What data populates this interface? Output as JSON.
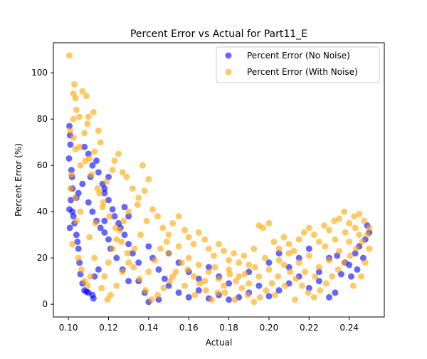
{
  "chart_data": {
    "type": "scatter",
    "title": "Percent Error vs Actual for Part11_E",
    "xlabel": "Actual",
    "ylabel": "Percent Error (%)",
    "xlim": [
      0.0925,
      0.2575
    ],
    "ylim": [
      -5.5,
      113
    ],
    "xticks": [
      0.1,
      0.12,
      0.14,
      0.16,
      0.18,
      0.2,
      0.22,
      0.24
    ],
    "xtick_labels": [
      "0.10",
      "0.12",
      "0.14",
      "0.16",
      "0.18",
      "0.20",
      "0.22",
      "0.24"
    ],
    "yticks": [
      0,
      20,
      40,
      60,
      80,
      100
    ],
    "ytick_labels": [
      "0",
      "20",
      "40",
      "60",
      "80",
      "100"
    ],
    "grid": false,
    "legend_position": "top-right",
    "series": [
      {
        "name": "Percent Error (No Noise)",
        "color": "#0000ff",
        "alpha": 0.6,
        "points": [
          [
            0.1005,
            77
          ],
          [
            0.1008,
            73
          ],
          [
            0.101,
            69
          ],
          [
            0.1003,
            63
          ],
          [
            0.1015,
            58
          ],
          [
            0.1018,
            55
          ],
          [
            0.102,
            50
          ],
          [
            0.1012,
            45
          ],
          [
            0.1005,
            41
          ],
          [
            0.1025,
            38
          ],
          [
            0.103,
            35
          ],
          [
            0.1007,
            33
          ],
          [
            0.104,
            30
          ],
          [
            0.1045,
            27
          ],
          [
            0.105,
            24
          ],
          [
            0.1055,
            18
          ],
          [
            0.106,
            13
          ],
          [
            0.107,
            9
          ],
          [
            0.108,
            6
          ],
          [
            0.109,
            5.5
          ],
          [
            0.11,
            5
          ],
          [
            0.112,
            4
          ],
          [
            0.1125,
            2.5
          ],
          [
            0.113,
            12
          ],
          [
            0.115,
            15
          ],
          [
            0.108,
            68
          ],
          [
            0.11,
            65
          ],
          [
            0.112,
            60
          ],
          [
            0.115,
            57
          ],
          [
            0.117,
            52
          ],
          [
            0.118,
            48
          ],
          [
            0.12,
            45
          ],
          [
            0.122,
            41
          ],
          [
            0.105,
            48
          ],
          [
            0.11,
            44
          ],
          [
            0.112,
            40
          ],
          [
            0.114,
            36
          ],
          [
            0.116,
            33
          ],
          [
            0.118,
            31
          ],
          [
            0.12,
            28
          ],
          [
            0.125,
            35
          ],
          [
            0.128,
            30
          ],
          [
            0.13,
            26
          ],
          [
            0.132,
            22
          ],
          [
            0.135,
            18
          ],
          [
            0.14,
            25
          ],
          [
            0.142,
            20
          ],
          [
            0.145,
            15
          ],
          [
            0.148,
            11
          ],
          [
            0.15,
            8
          ],
          [
            0.155,
            5
          ],
          [
            0.16,
            3
          ],
          [
            0.165,
            6
          ],
          [
            0.17,
            2.5
          ],
          [
            0.175,
            4
          ],
          [
            0.18,
            2
          ],
          [
            0.185,
            3
          ],
          [
            0.19,
            5
          ],
          [
            0.195,
            8
          ],
          [
            0.2,
            3.5
          ],
          [
            0.205,
            6
          ],
          [
            0.21,
            9
          ],
          [
            0.215,
            12
          ],
          [
            0.22,
            7
          ],
          [
            0.225,
            10
          ],
          [
            0.23,
            3
          ],
          [
            0.233,
            5
          ],
          [
            0.236,
            13
          ],
          [
            0.24,
            17
          ],
          [
            0.243,
            22
          ],
          [
            0.245,
            25
          ],
          [
            0.248,
            28
          ],
          [
            0.25,
            31
          ],
          [
            0.249,
            34
          ],
          [
            0.247,
            20
          ],
          [
            0.244,
            15
          ],
          [
            0.241,
            12
          ],
          [
            0.238,
            18
          ],
          [
            0.234,
            21
          ],
          [
            0.13,
            38
          ],
          [
            0.128,
            42
          ],
          [
            0.135,
            10
          ],
          [
            0.138,
            5
          ],
          [
            0.14,
            1
          ],
          [
            0.145,
            2
          ],
          [
            0.15,
            22
          ],
          [
            0.155,
            18
          ],
          [
            0.16,
            14
          ],
          [
            0.165,
            11
          ],
          [
            0.17,
            16
          ],
          [
            0.175,
            12
          ],
          [
            0.18,
            9
          ],
          [
            0.19,
            14
          ],
          [
            0.2,
            18
          ],
          [
            0.205,
            22
          ],
          [
            0.21,
            16
          ],
          [
            0.215,
            20
          ],
          [
            0.22,
            24
          ],
          [
            0.225,
            14
          ],
          [
            0.23,
            20
          ],
          [
            0.12,
            55
          ],
          [
            0.118,
            50
          ],
          [
            0.114,
            62
          ],
          [
            0.111,
            55
          ],
          [
            0.107,
            52
          ],
          [
            0.104,
            46
          ],
          [
            0.102,
            40
          ],
          [
            0.123,
            38
          ],
          [
            0.126,
            33
          ],
          [
            0.118,
            36
          ],
          [
            0.121,
            24
          ],
          [
            0.124,
            20
          ],
          [
            0.127,
            15
          ],
          [
            0.13,
            10
          ]
        ]
      },
      {
        "name": "Percent Error (With Noise)",
        "color": "#ffa500",
        "alpha": 0.6,
        "points": [
          [
            0.1005,
            107.5
          ],
          [
            0.103,
            95
          ],
          [
            0.1025,
            91
          ],
          [
            0.1035,
            89
          ],
          [
            0.104,
            84
          ],
          [
            0.1025,
            80
          ],
          [
            0.101,
            75
          ],
          [
            0.1055,
            81
          ],
          [
            0.107,
            92
          ],
          [
            0.109,
            90
          ],
          [
            0.11,
            81
          ],
          [
            0.1095,
            78
          ],
          [
            0.108,
            74
          ],
          [
            0.1125,
            83
          ],
          [
            0.115,
            75
          ],
          [
            0.116,
            70
          ],
          [
            0.113,
            66
          ],
          [
            0.1105,
            63
          ],
          [
            0.106,
            60
          ],
          [
            0.1035,
            67
          ],
          [
            0.1015,
            56
          ],
          [
            0.101,
            50
          ],
          [
            0.1035,
            46
          ],
          [
            0.106,
            40
          ],
          [
            0.104,
            36
          ],
          [
            0.102,
            26
          ],
          [
            0.105,
            20
          ],
          [
            0.1065,
            15
          ],
          [
            0.108,
            10
          ],
          [
            0.1095,
            8
          ],
          [
            0.111,
            12
          ],
          [
            0.113,
            20
          ],
          [
            0.1105,
            29
          ],
          [
            0.1135,
            35
          ],
          [
            0.117,
            42
          ],
          [
            0.1155,
            48
          ],
          [
            0.119,
            53
          ],
          [
            0.122,
            58
          ],
          [
            0.123,
            62
          ],
          [
            0.125,
            65
          ],
          [
            0.127,
            57
          ],
          [
            0.129,
            55
          ],
          [
            0.132,
            50
          ],
          [
            0.135,
            46
          ],
          [
            0.138,
            49
          ],
          [
            0.14,
            54
          ],
          [
            0.137,
            60
          ],
          [
            0.1345,
            43
          ],
          [
            0.13,
            40
          ],
          [
            0.1275,
            36
          ],
          [
            0.1255,
            32
          ],
          [
            0.124,
            28
          ],
          [
            0.122,
            24
          ],
          [
            0.12,
            18
          ],
          [
            0.118,
            12
          ],
          [
            0.1165,
            7
          ],
          [
            0.1195,
            2
          ],
          [
            0.121,
            4
          ],
          [
            0.124,
            8
          ],
          [
            0.127,
            14
          ],
          [
            0.13,
            18
          ],
          [
            0.133,
            24
          ],
          [
            0.136,
            30
          ],
          [
            0.139,
            36
          ],
          [
            0.142,
            41
          ],
          [
            0.1445,
            38
          ],
          [
            0.147,
            33
          ],
          [
            0.15,
            30
          ],
          [
            0.152,
            35
          ],
          [
            0.155,
            38
          ],
          [
            0.158,
            32
          ],
          [
            0.16,
            29
          ],
          [
            0.1625,
            26
          ],
          [
            0.165,
            31
          ],
          [
            0.168,
            28
          ],
          [
            0.17,
            24
          ],
          [
            0.1725,
            21
          ],
          [
            0.175,
            26
          ],
          [
            0.1775,
            23
          ],
          [
            0.18,
            19
          ],
          [
            0.1825,
            22
          ],
          [
            0.185,
            18
          ],
          [
            0.1875,
            21
          ],
          [
            0.19,
            17
          ],
          [
            0.1925,
            24
          ],
          [
            0.195,
            34
          ],
          [
            0.197,
            33
          ],
          [
            0.2,
            35
          ],
          [
            0.2025,
            27
          ],
          [
            0.205,
            24
          ],
          [
            0.2075,
            29
          ],
          [
            0.21,
            26
          ],
          [
            0.2125,
            23
          ],
          [
            0.215,
            28
          ],
          [
            0.2175,
            31
          ],
          [
            0.22,
            33
          ],
          [
            0.2225,
            30
          ],
          [
            0.225,
            27
          ],
          [
            0.2275,
            34
          ],
          [
            0.23,
            32
          ],
          [
            0.2325,
            36
          ],
          [
            0.235,
            37
          ],
          [
            0.2375,
            40
          ],
          [
            0.24,
            35
          ],
          [
            0.2425,
            38
          ],
          [
            0.245,
            39
          ],
          [
            0.2475,
            36
          ],
          [
            0.25,
            33
          ],
          [
            0.249,
            30
          ],
          [
            0.2465,
            27
          ],
          [
            0.2435,
            24
          ],
          [
            0.2405,
            21
          ],
          [
            0.2375,
            18
          ],
          [
            0.2345,
            15
          ],
          [
            0.2315,
            12
          ],
          [
            0.2285,
            9
          ],
          [
            0.2255,
            6
          ],
          [
            0.2225,
            3
          ],
          [
            0.2195,
            5
          ],
          [
            0.2165,
            8
          ],
          [
            0.2135,
            11
          ],
          [
            0.2105,
            14
          ],
          [
            0.2075,
            17
          ],
          [
            0.2045,
            12
          ],
          [
            0.2015,
            9
          ],
          [
            0.1985,
            6
          ],
          [
            0.1955,
            3
          ],
          [
            0.1925,
            1
          ],
          [
            0.1895,
            4
          ],
          [
            0.1865,
            7
          ],
          [
            0.1835,
            10
          ],
          [
            0.1805,
            13
          ],
          [
            0.1775,
            8
          ],
          [
            0.1745,
            5
          ],
          [
            0.1715,
            2
          ],
          [
            0.1685,
            6
          ],
          [
            0.1655,
            9
          ],
          [
            0.1625,
            12
          ],
          [
            0.1595,
            15
          ],
          [
            0.1565,
            18
          ],
          [
            0.1535,
            14
          ],
          [
            0.1505,
            10
          ],
          [
            0.1475,
            7
          ],
          [
            0.1445,
            4
          ],
          [
            0.1415,
            2
          ],
          [
            0.1385,
            6
          ],
          [
            0.1355,
            11
          ],
          [
            0.1325,
            16
          ],
          [
            0.1295,
            22
          ],
          [
            0.1265,
            27
          ],
          [
            0.1235,
            33
          ],
          [
            0.1205,
            38
          ],
          [
            0.1175,
            44
          ],
          [
            0.1145,
            50
          ],
          [
            0.1115,
            56
          ],
          [
            0.1085,
            62
          ],
          [
            0.1055,
            68
          ],
          [
            0.1025,
            72
          ],
          [
            0.15,
            22
          ],
          [
            0.155,
            25
          ],
          [
            0.16,
            20
          ],
          [
            0.165,
            17
          ],
          [
            0.17,
            14
          ],
          [
            0.175,
            11
          ],
          [
            0.18,
            15
          ],
          [
            0.185,
            12
          ],
          [
            0.19,
            9
          ],
          [
            0.195,
            12
          ],
          [
            0.2,
            15
          ],
          [
            0.205,
            19
          ],
          [
            0.21,
            22
          ],
          [
            0.215,
            18
          ],
          [
            0.22,
            21
          ],
          [
            0.225,
            16
          ],
          [
            0.23,
            19
          ],
          [
            0.235,
            23
          ],
          [
            0.24,
            27
          ],
          [
            0.245,
            30
          ],
          [
            0.25,
            24
          ],
          [
            0.14,
            14
          ],
          [
            0.143,
            19
          ],
          [
            0.146,
            24
          ],
          [
            0.149,
            27
          ],
          [
            0.152,
            12
          ],
          [
            0.158,
            8
          ],
          [
            0.163,
            4
          ],
          [
            0.168,
            10
          ],
          [
            0.173,
            16
          ],
          [
            0.178,
            5
          ],
          [
            0.183,
            2
          ],
          [
            0.188,
            13
          ],
          [
            0.193,
            16
          ],
          [
            0.198,
            20
          ],
          [
            0.203,
            4
          ],
          [
            0.208,
            8
          ],
          [
            0.213,
            2
          ],
          [
            0.218,
            14
          ],
          [
            0.223,
            12
          ],
          [
            0.228,
            25
          ],
          [
            0.233,
            28
          ],
          [
            0.238,
            31
          ],
          [
            0.243,
            33
          ],
          [
            0.248,
            18
          ],
          [
            0.246,
            12
          ],
          [
            0.242,
            8
          ]
        ]
      }
    ]
  }
}
